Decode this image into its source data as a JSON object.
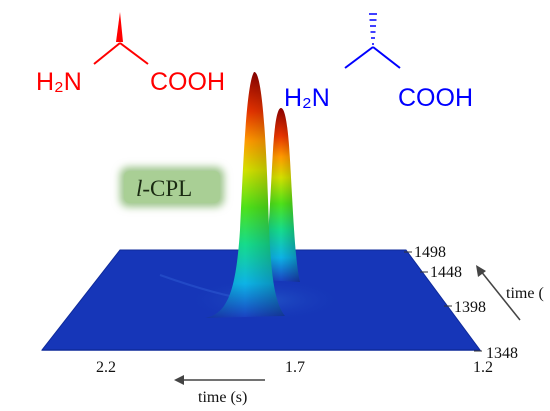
{
  "colors": {
    "l_molecule": "#ff0000",
    "d_molecule": "#0000ff",
    "floor": "#1636b8",
    "label_box": "#9cc48a"
  },
  "molecule_left": {
    "amine": "H₂N",
    "acid": "COOH"
  },
  "molecule_right": {
    "amine": "H₂N",
    "acid": "COOH"
  },
  "cpl_label": {
    "prefix": "l",
    "suffix": "-CPL"
  },
  "x_axis": {
    "ticks": [
      "2.2",
      "1.7",
      "1.2"
    ],
    "title": "time (s)"
  },
  "depth_axis": {
    "ticks": [
      "1498",
      "1448",
      "1398",
      "1348"
    ],
    "title": "time ("
  },
  "chart_data": {
    "type": "area",
    "x_axis_title": "time (s)",
    "x_ticks": [
      2.2,
      1.7,
      1.2
    ],
    "depth_ticks": [
      1498,
      1448,
      1398,
      1348
    ],
    "series": [
      {
        "peak_time_s": 1.85,
        "relative_height": 1.0
      },
      {
        "peak_time_s": 1.75,
        "relative_height": 0.78
      }
    ]
  }
}
